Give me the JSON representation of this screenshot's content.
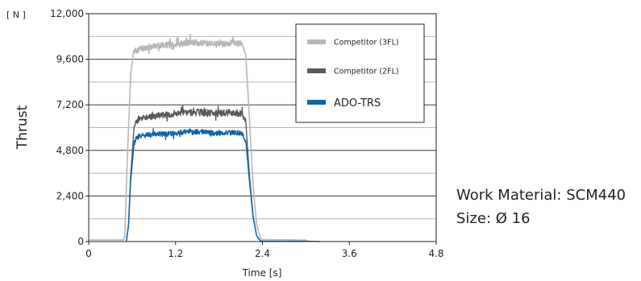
{
  "chart_data": {
    "type": "line",
    "unit_label": "[ N ]",
    "ylabel": "Thrust",
    "xlabel": "Time [s]",
    "xlim": [
      0,
      4.8
    ],
    "ylim": [
      0,
      12000
    ],
    "x_ticks": [
      "0",
      "1.2",
      "2.4",
      "3.6",
      "4.8"
    ],
    "y_ticks": [
      "0",
      "2,400",
      "4,800",
      "7,200",
      "9,600",
      "12,000"
    ],
    "grid": "horizontal",
    "legend_position": "top-right",
    "series": [
      {
        "name": "Competitor (3FL)",
        "color": "#b7b7b7",
        "x": [
          0,
          0.48,
          0.5,
          0.53,
          0.58,
          0.62,
          0.7,
          0.9,
          1.2,
          1.4,
          1.6,
          1.8,
          2.0,
          2.12,
          2.17,
          2.22,
          2.27,
          2.32,
          2.37,
          2.4,
          2.5,
          3.0,
          3.02
        ],
        "values": [
          80,
          80,
          300,
          4000,
          8800,
          10000,
          10150,
          10300,
          10400,
          10500,
          10450,
          10400,
          10450,
          10400,
          9800,
          6500,
          3000,
          900,
          200,
          100,
          100,
          80,
          0
        ]
      },
      {
        "name": "Competitor (2FL)",
        "color": "#5a5a5a",
        "x": [
          0.52,
          0.55,
          0.58,
          0.63,
          0.7,
          0.9,
          1.2,
          1.4,
          1.6,
          1.8,
          2.0,
          2.12,
          2.17,
          2.22,
          2.27,
          2.32,
          2.37,
          2.4
        ],
        "values": [
          0,
          900,
          3500,
          6200,
          6500,
          6600,
          6750,
          6800,
          6800,
          6750,
          6800,
          6750,
          6300,
          3500,
          1400,
          300,
          50,
          0
        ]
      },
      {
        "name": "ADO-TRS",
        "color": "#0e64a8",
        "x": [
          0.52,
          0.55,
          0.58,
          0.63,
          0.7,
          0.9,
          1.2,
          1.4,
          1.6,
          1.8,
          2.0,
          2.12,
          2.17,
          2.22,
          2.27,
          2.32,
          2.37,
          2.4,
          3.0,
          3.2
        ],
        "values": [
          0,
          800,
          3200,
          5300,
          5550,
          5650,
          5700,
          5800,
          5750,
          5700,
          5750,
          5700,
          5300,
          3200,
          1300,
          300,
          50,
          20,
          20,
          0
        ]
      }
    ]
  },
  "notes": {
    "material": "Work Material: SCM440",
    "size": "Size: Ø 16"
  }
}
